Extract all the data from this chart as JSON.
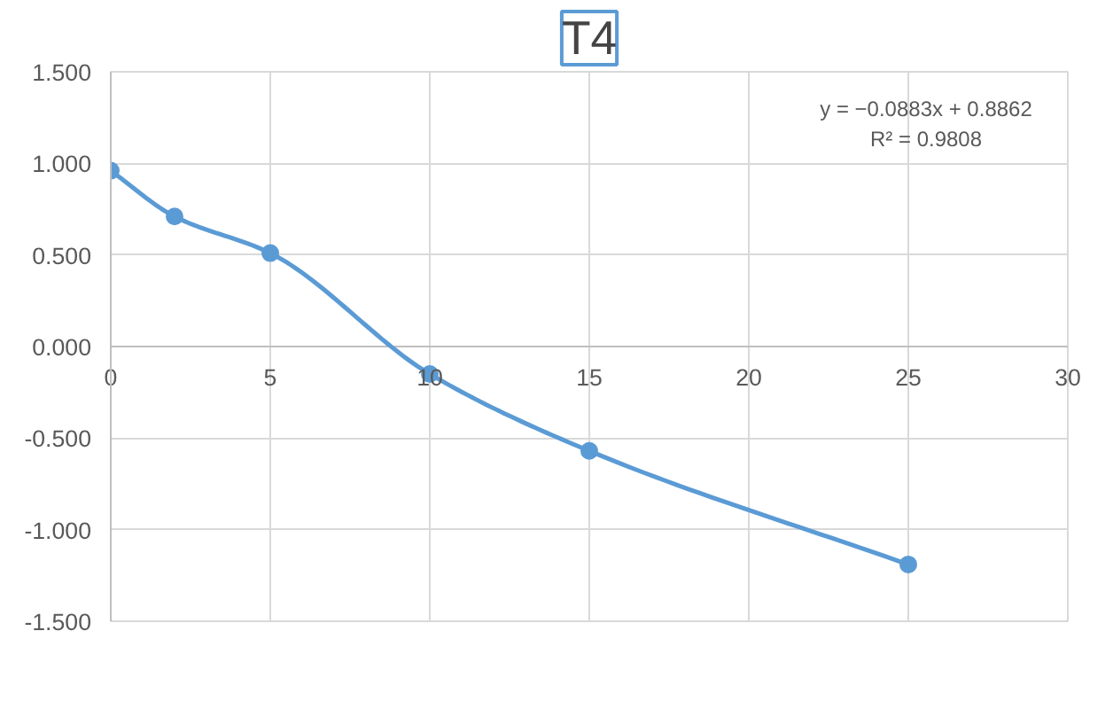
{
  "chart_data": {
    "type": "line",
    "title": "T4",
    "x": [
      0,
      2,
      5,
      10,
      15,
      25
    ],
    "series": [
      {
        "color": "#5b9bd5",
        "values": [
          0.96,
          0.71,
          0.51,
          -0.15,
          -0.57,
          -1.19
        ]
      }
    ],
    "xlim": [
      0,
      30
    ],
    "xticks": [
      0,
      5,
      10,
      15,
      20,
      25,
      30
    ],
    "ylim": [
      -1.5,
      1.5
    ],
    "yticks": [
      {
        "value": -1.5,
        "label": "-1.500"
      },
      {
        "value": -1.0,
        "label": "-1.000"
      },
      {
        "value": -0.5,
        "label": "-0.500"
      },
      {
        "value": 0,
        "label": "0.000"
      },
      {
        "value": 0.5,
        "label": "0.500"
      },
      {
        "value": 1.0,
        "label": "1.000"
      },
      {
        "value": 1.5,
        "label": "1.500"
      }
    ],
    "grid": true,
    "marker": "circle",
    "line_style": "solid",
    "annotations": [
      "y = −0.0883x + 0.8862\nR² = 0.9808"
    ]
  }
}
